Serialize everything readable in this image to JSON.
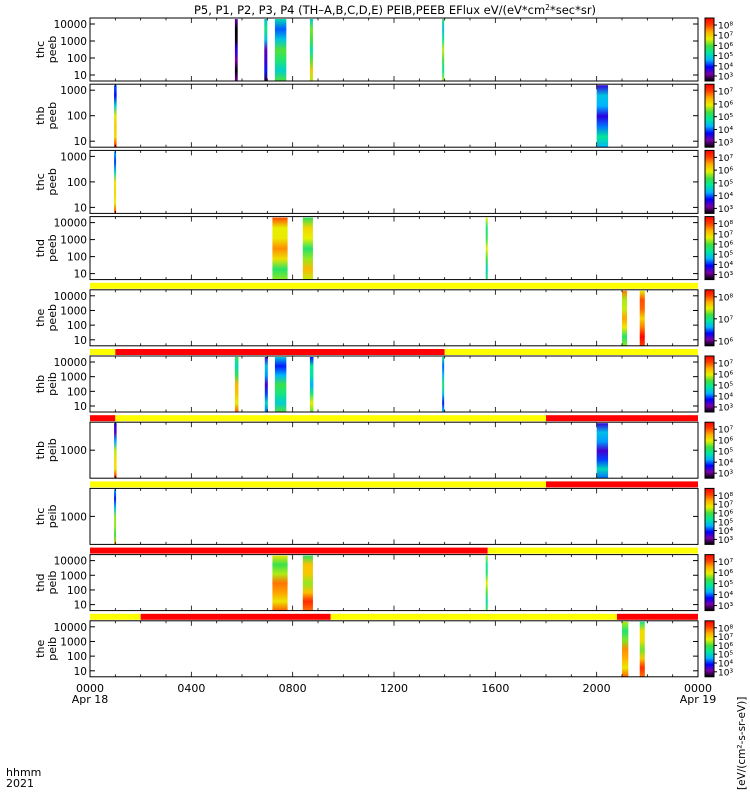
{
  "chart_data": {
    "type": "heatmap",
    "title": "P5, P1, P2, P3, P4 (TH-A,B,C,D,E) PEIB,PEEB EFlux eV/(eV*cm^2*sec*sr)",
    "title_parts": [
      "P5, P1, P2, P3, P4 (TH–A,B,C,D,E) PEIB,PEEB EFlux eV/(eV*cm",
      "2",
      "*sec*sr)"
    ],
    "x_tick_labels": [
      "0000",
      "0400",
      "0800",
      "1200",
      "1600",
      "2000",
      "0000"
    ],
    "x_date_labels": [
      "Apr 18",
      "Apr 19"
    ],
    "x_range_hours": [
      0,
      24
    ],
    "corner_labels": [
      "hhmm",
      "2021"
    ],
    "colorbar_unit_label": "[eV/(cm²-s-sr-eV)]",
    "colormap": "rainbow",
    "colors": {
      "bar_red": "#ff0000",
      "bar_yellow": "#ffff00",
      "bar_black": "#000000",
      "colormap_stops": [
        "#000000",
        "#7a00a8",
        "#0000ff",
        "#00b4ff",
        "#00e8a0",
        "#40e040",
        "#e8f000",
        "#ffb000",
        "#ff4000",
        "#ff0000"
      ]
    },
    "panels": [
      {
        "name": "thc peeb",
        "label": [
          "thc",
          "peeb"
        ],
        "y_ticks": [
          "10",
          "100",
          "1000",
          "10000"
        ],
        "cbar_ticks": [
          "10⁸",
          "10⁷",
          "10⁶",
          "10⁵",
          "10⁴",
          "10³"
        ],
        "segments": [
          {
            "t0": 5.72,
            "t1": 5.83,
            "c0": 0.1,
            "c1": 0.05
          },
          {
            "t0": 6.88,
            "t1": 7.0,
            "c0": 0.05,
            "c1": 0.45
          },
          {
            "t0": 7.3,
            "t1": 7.75,
            "c0": 0.55,
            "c1": 0.35
          },
          {
            "t0": 8.68,
            "t1": 8.8,
            "c0": 0.65,
            "c1": 0.45
          },
          {
            "t0": 13.9,
            "t1": 13.98,
            "c0": 0.6,
            "c1": 0.45
          }
        ],
        "mode_bar": []
      },
      {
        "name": "thb peeb",
        "label": [
          "thb",
          "peeb"
        ],
        "y_ticks": [
          "10",
          "100",
          "1000"
        ],
        "cbar_ticks": [
          "10⁷",
          "10⁶",
          "10⁵",
          "10⁴",
          "10³"
        ],
        "segments": [
          {
            "t0": 0.95,
            "t1": 1.05,
            "c0": 0.95,
            "c1": 0.2
          },
          {
            "t0": 20.0,
            "t1": 20.45,
            "c0": 0.35,
            "c1": 0.25
          }
        ],
        "mode_bar": []
      },
      {
        "name": "thc peeb",
        "label": [
          "thc",
          "peeb"
        ],
        "y_ticks": [
          "10",
          "100",
          "1000"
        ],
        "cbar_ticks": [
          "10⁷",
          "10⁶",
          "10⁵",
          "10⁴",
          "10³"
        ],
        "segments": [
          {
            "t0": 0.95,
            "t1": 1.02,
            "c0": 0.9,
            "c1": 0.25
          }
        ],
        "mode_bar": []
      },
      {
        "name": "thd peeb",
        "label": [
          "thd",
          "peeb"
        ],
        "y_ticks": [
          "10",
          "100",
          "1000",
          "10000"
        ],
        "cbar_ticks": [
          "10⁸",
          "10⁷",
          "10⁶",
          "10⁵",
          "10⁴",
          "10³"
        ],
        "segments": [
          {
            "t0": 7.2,
            "t1": 7.8,
            "c0": 0.6,
            "c1": 0.8
          },
          {
            "t0": 8.4,
            "t1": 8.8,
            "c0": 0.65,
            "c1": 0.6
          },
          {
            "t0": 15.62,
            "t1": 15.7,
            "c0": 0.5,
            "c1": 0.6
          }
        ],
        "mode_bar": []
      },
      {
        "name": "the peeb",
        "label": [
          "the",
          "peeb"
        ],
        "y_ticks": [
          "10",
          "100",
          "1000",
          "10000"
        ],
        "cbar_ticks": [
          "10⁸",
          "10⁷",
          "10⁶"
        ],
        "segments": [
          {
            "t0": 21.0,
            "t1": 21.2,
            "c0": 0.6,
            "c1": 0.75
          },
          {
            "t0": 21.7,
            "t1": 21.9,
            "c0": 0.9,
            "c1": 0.75
          }
        ],
        "mode_bar": [
          {
            "t0": 0,
            "t1": 24,
            "c": "yellow"
          }
        ]
      },
      {
        "name": "thb peib",
        "label": [
          "thb",
          "peib"
        ],
        "y_ticks": [
          "10",
          "100",
          "1000",
          "10000"
        ],
        "cbar_ticks": [
          "10⁷",
          "10⁶",
          "10⁵",
          "10⁴",
          "10³"
        ],
        "segments": [
          {
            "t0": 5.72,
            "t1": 5.86,
            "c0": 0.85,
            "c1": 0.45
          },
          {
            "t0": 6.9,
            "t1": 7.02,
            "c0": 0.3,
            "c1": 0.25
          },
          {
            "t0": 7.3,
            "t1": 7.75,
            "c0": 0.55,
            "c1": 0.3
          },
          {
            "t0": 8.68,
            "t1": 8.82,
            "c0": 0.6,
            "c1": 0.3
          },
          {
            "t0": 13.9,
            "t1": 13.98,
            "c0": 0.35,
            "c1": 0.4
          }
        ],
        "mode_bar": [
          {
            "t0": 0,
            "t1": 1.0,
            "c": "yellow"
          },
          {
            "t0": 1.0,
            "t1": 14.0,
            "c": "red"
          },
          {
            "t0": 14.0,
            "t1": 24,
            "c": "yellow"
          }
        ]
      },
      {
        "name": "thb peib",
        "label": [
          "thb",
          "peib"
        ],
        "y_ticks": [
          "1000"
        ],
        "cbar_ticks": [
          "10⁷",
          "10⁶",
          "10⁵",
          "10⁴",
          "10³"
        ],
        "segments": [
          {
            "t0": 0.95,
            "t1": 1.05,
            "c0": 0.95,
            "c1": 0.1
          },
          {
            "t0": 20.0,
            "t1": 20.45,
            "c0": 0.3,
            "c1": 0.25
          }
        ],
        "mode_bar": [
          {
            "t0": 0,
            "t1": 1.0,
            "c": "red"
          },
          {
            "t0": 1.0,
            "t1": 18.0,
            "c": "yellow"
          },
          {
            "t0": 18.0,
            "t1": 24,
            "c": "red"
          }
        ]
      },
      {
        "name": "thc peib",
        "label": [
          "thc",
          "peib"
        ],
        "y_ticks": [
          "1000"
        ],
        "cbar_ticks": [
          "10⁸",
          "10⁷",
          "10⁶",
          "10⁵",
          "10⁴",
          "10³"
        ],
        "segments": [
          {
            "t0": 0.95,
            "t1": 1.02,
            "c0": 0.75,
            "c1": 0.25
          }
        ],
        "mode_bar": [
          {
            "t0": 0,
            "t1": 1.0,
            "c": "yellow"
          },
          {
            "t0": 1.0,
            "t1": 18.0,
            "c": "yellow"
          },
          {
            "t0": 18.0,
            "t1": 24,
            "c": "red"
          }
        ]
      },
      {
        "name": "thd peib",
        "label": [
          "thd",
          "peib"
        ],
        "y_ticks": [
          "10",
          "100",
          "1000",
          "10000"
        ],
        "cbar_ticks": [
          "10⁷",
          "10⁶",
          "10⁵",
          "10⁴",
          "10³"
        ],
        "segments": [
          {
            "t0": 7.2,
            "t1": 7.8,
            "c0": 0.85,
            "c1": 0.6
          },
          {
            "t0": 8.4,
            "t1": 8.8,
            "c0": 0.85,
            "c1": 0.6
          },
          {
            "t0": 15.62,
            "t1": 15.7,
            "c0": 0.55,
            "c1": 0.55
          }
        ],
        "mode_bar": [
          {
            "t0": 0,
            "t1": 15.7,
            "c": "red"
          },
          {
            "t0": 15.7,
            "t1": 24,
            "c": "yellow"
          }
        ]
      },
      {
        "name": "the peib",
        "label": [
          "the",
          "peib"
        ],
        "y_ticks": [
          "10",
          "100",
          "1000",
          "10000"
        ],
        "cbar_ticks": [
          "10⁸",
          "10⁷",
          "10⁶",
          "10⁵",
          "10⁴",
          "10³"
        ],
        "segments": [
          {
            "t0": 21.0,
            "t1": 21.25,
            "c0": 0.85,
            "c1": 0.55
          },
          {
            "t0": 21.7,
            "t1": 21.9,
            "c0": 0.85,
            "c1": 0.55
          }
        ],
        "mode_bar": [
          {
            "t0": 0,
            "t1": 2.0,
            "c": "yellow"
          },
          {
            "t0": 2.0,
            "t1": 9.5,
            "c": "red"
          },
          {
            "t0": 9.5,
            "t1": 20.8,
            "c": "yellow"
          },
          {
            "t0": 20.8,
            "t1": 24,
            "c": "red"
          }
        ]
      }
    ]
  }
}
